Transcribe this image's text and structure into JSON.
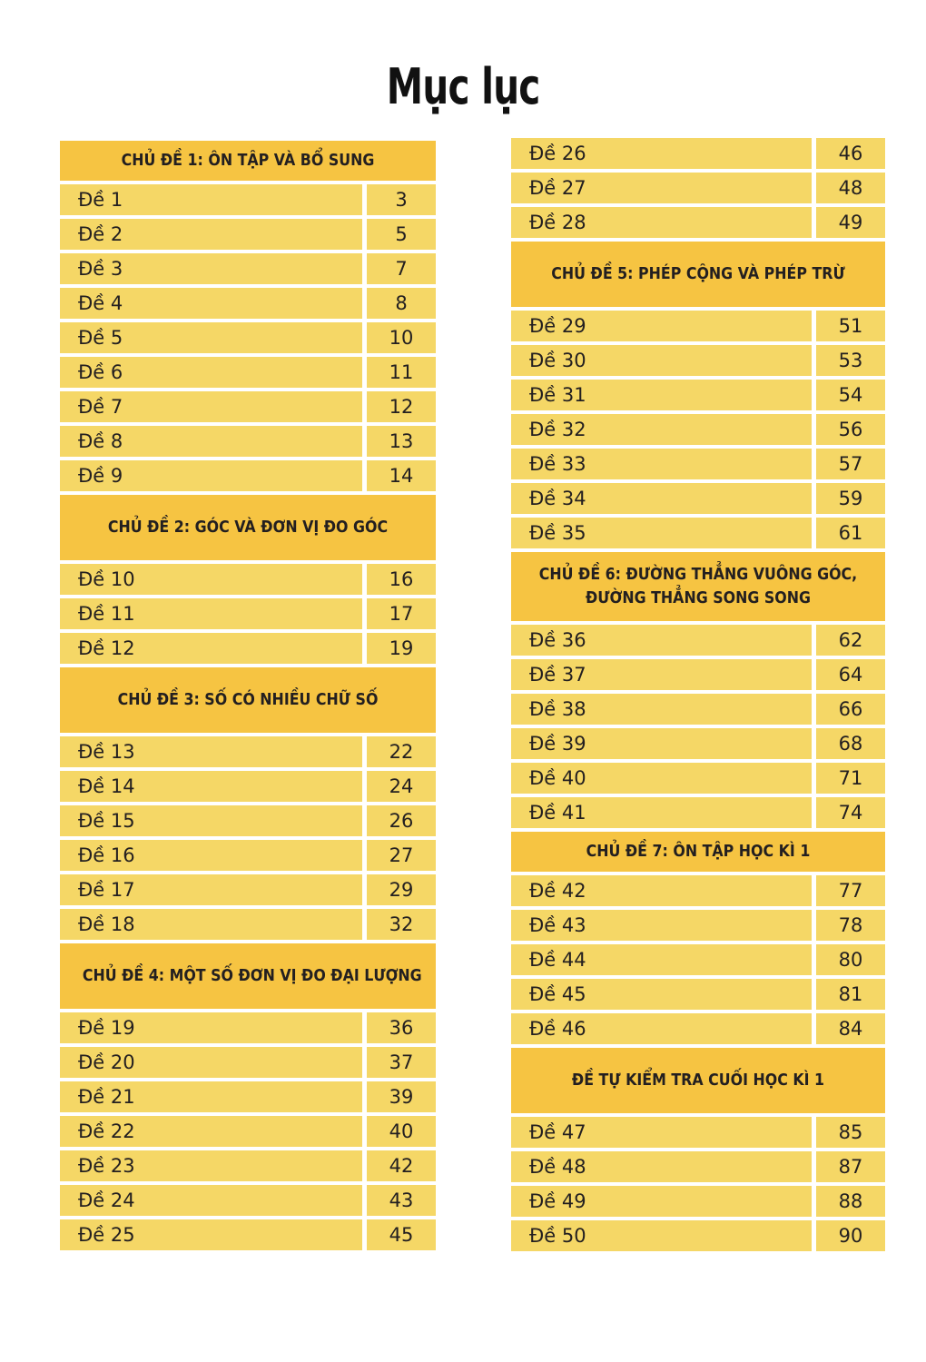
{
  "title": "Mục lục",
  "colors": {
    "header_bg": "#f6c442",
    "row_bg": "#f5d766",
    "text": "#231f20",
    "page_bg": "#ffffff"
  },
  "columns": [
    {
      "blocks": [
        {
          "type": "header",
          "style": "small",
          "lines": [
            "CHỦ ĐỀ 1: ÔN TẬP VÀ BỔ SUNG"
          ]
        },
        {
          "type": "rows",
          "items": [
            {
              "label": "Đề 1",
              "page": "3"
            },
            {
              "label": "Đề 2",
              "page": "5"
            },
            {
              "label": "Đề 3",
              "page": "7"
            },
            {
              "label": "Đề 4",
              "page": "8"
            },
            {
              "label": "Đề 5",
              "page": "10"
            },
            {
              "label": "Đề 6",
              "page": "11"
            },
            {
              "label": "Đề 7",
              "page": "12"
            },
            {
              "label": "Đề 8",
              "page": "13"
            },
            {
              "label": "Đề 9",
              "page": "14"
            }
          ]
        },
        {
          "type": "header",
          "style": "tall",
          "lines": [
            "CHỦ ĐỀ 2: GÓC VÀ ĐƠN VỊ ĐO GÓC"
          ]
        },
        {
          "type": "rows",
          "items": [
            {
              "label": "Đề 10",
              "page": "16"
            },
            {
              "label": "Đề 11",
              "page": "17"
            },
            {
              "label": "Đề 12",
              "page": "19"
            }
          ]
        },
        {
          "type": "header",
          "style": "tall",
          "lines": [
            "CHỦ ĐỀ 3: SỐ CÓ NHIỀU CHỮ SỐ"
          ]
        },
        {
          "type": "rows",
          "items": [
            {
              "label": "Đề 13",
              "page": "22"
            },
            {
              "label": "Đề 14",
              "page": "24"
            },
            {
              "label": "Đề 15",
              "page": "26"
            },
            {
              "label": "Đề 16",
              "page": "27"
            },
            {
              "label": "Đề 17",
              "page": "29"
            },
            {
              "label": "Đề 18",
              "page": "32"
            }
          ]
        },
        {
          "type": "header",
          "style": "tall",
          "lines": [
            "CHỦ ĐỀ 4: MỘT SỐ ĐƠN VỊ ĐO ĐẠI LƯỢNG"
          ]
        },
        {
          "type": "rows",
          "items": [
            {
              "label": "Đề 19",
              "page": "36"
            },
            {
              "label": "Đề 20",
              "page": "37"
            },
            {
              "label": "Đề 21",
              "page": "39"
            },
            {
              "label": "Đề 22",
              "page": "40"
            },
            {
              "label": "Đề 23",
              "page": "42"
            },
            {
              "label": "Đề 24",
              "page": "43"
            },
            {
              "label": "Đề 25",
              "page": "45"
            }
          ]
        }
      ]
    },
    {
      "blocks": [
        {
          "type": "rows",
          "items": [
            {
              "label": "Đề 26",
              "page": "46"
            },
            {
              "label": "Đề 27",
              "page": "48"
            },
            {
              "label": "Đề 28",
              "page": "49"
            }
          ]
        },
        {
          "type": "header",
          "style": "tall",
          "lines": [
            "CHỦ ĐỀ 5: PHÉP CỘNG VÀ PHÉP TRỪ"
          ]
        },
        {
          "type": "rows",
          "items": [
            {
              "label": "Đề 29",
              "page": "51"
            },
            {
              "label": "Đề 30",
              "page": "53"
            },
            {
              "label": "Đề 31",
              "page": "54"
            },
            {
              "label": "Đề 32",
              "page": "56"
            },
            {
              "label": "Đề 33",
              "page": "57"
            },
            {
              "label": "Đề 34",
              "page": "59"
            },
            {
              "label": "Đề 35",
              "page": "61"
            }
          ]
        },
        {
          "type": "header",
          "style": "twoline",
          "lines": [
            "CHỦ ĐỀ 6: ĐƯỜNG THẲNG VUÔNG GÓC,",
            "ĐƯỜNG THẲNG SONG SONG"
          ]
        },
        {
          "type": "rows",
          "items": [
            {
              "label": "Đề 36",
              "page": "62"
            },
            {
              "label": "Đề 37",
              "page": "64"
            },
            {
              "label": "Đề 38",
              "page": "66"
            },
            {
              "label": "Đề 39",
              "page": "68"
            },
            {
              "label": "Đề 40",
              "page": "71"
            },
            {
              "label": "Đề 41",
              "page": "74"
            }
          ]
        },
        {
          "type": "header",
          "style": "small",
          "lines": [
            "CHỦ ĐỀ 7: ÔN TẬP HỌC KÌ 1"
          ]
        },
        {
          "type": "rows",
          "items": [
            {
              "label": "Đề 42",
              "page": "77"
            },
            {
              "label": "Đề 43",
              "page": "78"
            },
            {
              "label": "Đề 44",
              "page": "80"
            },
            {
              "label": "Đề 45",
              "page": "81"
            },
            {
              "label": "Đề 46",
              "page": "84"
            }
          ]
        },
        {
          "type": "header",
          "style": "tall",
          "lines": [
            "ĐỀ TỰ KIỂM TRA CUỐI HỌC KÌ 1"
          ]
        },
        {
          "type": "rows",
          "items": [
            {
              "label": "Đề 47",
              "page": "85"
            },
            {
              "label": "Đề 48",
              "page": "87"
            },
            {
              "label": "Đề 49",
              "page": "88"
            },
            {
              "label": "Đề 50",
              "page": "90"
            }
          ]
        }
      ]
    }
  ]
}
